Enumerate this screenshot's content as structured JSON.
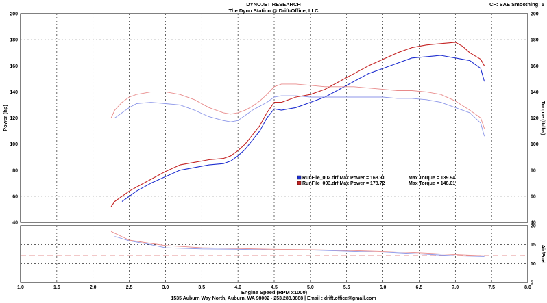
{
  "header": {
    "company": "DYNOJET RESEARCH",
    "shop": "The Dyno Station @ Drift-Office, LLC",
    "settings": "CF: SAE  Smoothing: 5"
  },
  "footer": {
    "address": "1535 Auburn Way North, Auburn, WA 98002 - 253.288.3888 | Email : drift.office@gmail.com"
  },
  "colors": {
    "run1": "#1f2fd0",
    "run2": "#c42424",
    "run1_light": "#8c96e8",
    "run2_light": "#e88a8a",
    "afr_target": "#cc2222",
    "grid": "#000000"
  },
  "chart_data": [
    {
      "type": "line",
      "title": "DYNOJET RESEARCH",
      "xlabel": "Engine Speed (RPM x1000)",
      "ylabel": "Power (hp)",
      "y2label": "Torque (ft-lbs)",
      "xlim": [
        1.0,
        8.0
      ],
      "ylim": [
        40,
        200
      ],
      "xticks": [
        "1.0",
        "1.5",
        "2.0",
        "2.5",
        "3.0",
        "3.5",
        "4.0",
        "4.5",
        "5.0",
        "5.5",
        "6.0",
        "6.5",
        "7.0",
        "7.5",
        "8.0"
      ],
      "yticks": [
        "40",
        "60",
        "80",
        "100",
        "120",
        "140",
        "160",
        "180",
        "200"
      ],
      "grid": true,
      "legend": [
        {
          "label": "RunFile_002.drf Max Power = 168.91",
          "extra": "Max Torque = 139.94",
          "color": "#1f2fd0"
        },
        {
          "label": "RunFile_003.drf Max Power = 178.72",
          "extra": "Max Torque = 148.01",
          "color": "#c42424"
        }
      ],
      "legend_position": "center-right",
      "series": [
        {
          "name": "RunFile_002.drf",
          "kind": "power",
          "x": [
            2.4,
            2.5,
            2.6,
            2.8,
            3.0,
            3.2,
            3.4,
            3.6,
            3.8,
            3.9,
            4.0,
            4.1,
            4.2,
            4.3,
            4.4,
            4.5,
            4.6,
            4.8,
            5.0,
            5.2,
            5.4,
            5.6,
            5.8,
            6.0,
            6.2,
            6.4,
            6.6,
            6.8,
            7.0,
            7.2,
            7.35,
            7.4
          ],
          "y": [
            56,
            60,
            64,
            70,
            75,
            80,
            82,
            84,
            85,
            87,
            91,
            96,
            103,
            110,
            120,
            127,
            126,
            128,
            132,
            136,
            142,
            148,
            154,
            158,
            162,
            166,
            167,
            168,
            166,
            164,
            158,
            148
          ]
        },
        {
          "name": "RunFile_003.drf",
          "kind": "power",
          "x": [
            2.25,
            2.3,
            2.4,
            2.5,
            2.6,
            2.8,
            3.0,
            3.2,
            3.4,
            3.6,
            3.8,
            3.9,
            4.0,
            4.1,
            4.2,
            4.3,
            4.4,
            4.5,
            4.6,
            4.8,
            5.0,
            5.2,
            5.4,
            5.6,
            5.8,
            6.0,
            6.2,
            6.4,
            6.6,
            6.8,
            7.0,
            7.1,
            7.2,
            7.35,
            7.4
          ],
          "y": [
            52,
            56,
            60,
            64,
            67,
            73,
            79,
            84,
            86,
            88,
            89,
            91,
            95,
            100,
            107,
            114,
            124,
            132,
            132,
            136,
            138,
            142,
            148,
            154,
            160,
            165,
            170,
            174,
            176,
            177,
            178,
            175,
            170,
            165,
            160
          ]
        },
        {
          "name": "RunFile_002.drf",
          "kind": "torque",
          "x": [
            2.3,
            2.4,
            2.5,
            2.6,
            2.8,
            3.0,
            3.2,
            3.4,
            3.6,
            3.8,
            3.9,
            4.0,
            4.1,
            4.2,
            4.3,
            4.4,
            4.5,
            4.6,
            4.8,
            5.0,
            5.2,
            5.4,
            5.6,
            5.8,
            6.0,
            6.2,
            6.4,
            6.6,
            6.8,
            7.0,
            7.2,
            7.35,
            7.4
          ],
          "y": [
            120,
            124,
            128,
            131,
            132,
            131,
            130,
            126,
            121,
            118,
            117,
            118,
            122,
            126,
            129,
            132,
            136,
            137,
            137,
            136,
            136,
            136,
            136,
            136,
            136,
            135,
            135,
            134,
            132,
            128,
            124,
            116,
            106
          ]
        },
        {
          "name": "RunFile_003.drf",
          "kind": "torque",
          "x": [
            2.25,
            2.3,
            2.4,
            2.5,
            2.6,
            2.8,
            3.0,
            3.2,
            3.4,
            3.6,
            3.8,
            3.9,
            4.0,
            4.1,
            4.2,
            4.3,
            4.4,
            4.5,
            4.6,
            4.8,
            5.0,
            5.2,
            5.4,
            5.6,
            5.8,
            6.0,
            6.2,
            6.4,
            6.6,
            6.8,
            7.0,
            7.2,
            7.35,
            7.4
          ],
          "y": [
            120,
            126,
            132,
            136,
            138,
            140,
            140,
            138,
            134,
            128,
            124,
            123,
            124,
            126,
            129,
            133,
            138,
            144,
            146,
            146,
            145,
            144,
            144,
            144,
            143,
            142,
            141,
            141,
            140,
            138,
            133,
            126,
            120,
            112
          ]
        }
      ]
    },
    {
      "type": "line",
      "ylabel": "Air/Fuel",
      "xlim": [
        1.0,
        8.0
      ],
      "ylim": [
        5,
        20
      ],
      "yticks": [
        "5",
        "10",
        "15",
        "20"
      ],
      "target_afr": 12.0,
      "series": [
        {
          "name": "RunFile_002.drf",
          "x": [
            2.3,
            2.5,
            2.8,
            3.0,
            3.5,
            4.0,
            4.5,
            5.0,
            5.5,
            6.0,
            6.5,
            7.0,
            7.4
          ],
          "y": [
            17.2,
            16.0,
            15.0,
            14.2,
            13.9,
            13.8,
            13.6,
            13.6,
            13.3,
            13.0,
            12.5,
            12.0,
            11.8
          ]
        },
        {
          "name": "RunFile_003.drf",
          "x": [
            2.25,
            2.5,
            2.8,
            3.0,
            3.5,
            4.0,
            4.5,
            5.0,
            5.5,
            6.0,
            6.5,
            7.0,
            7.4
          ],
          "y": [
            18.5,
            16.2,
            15.3,
            14.8,
            14.2,
            14.0,
            13.8,
            13.7,
            13.5,
            13.2,
            12.8,
            12.3,
            12.0
          ]
        }
      ]
    }
  ]
}
